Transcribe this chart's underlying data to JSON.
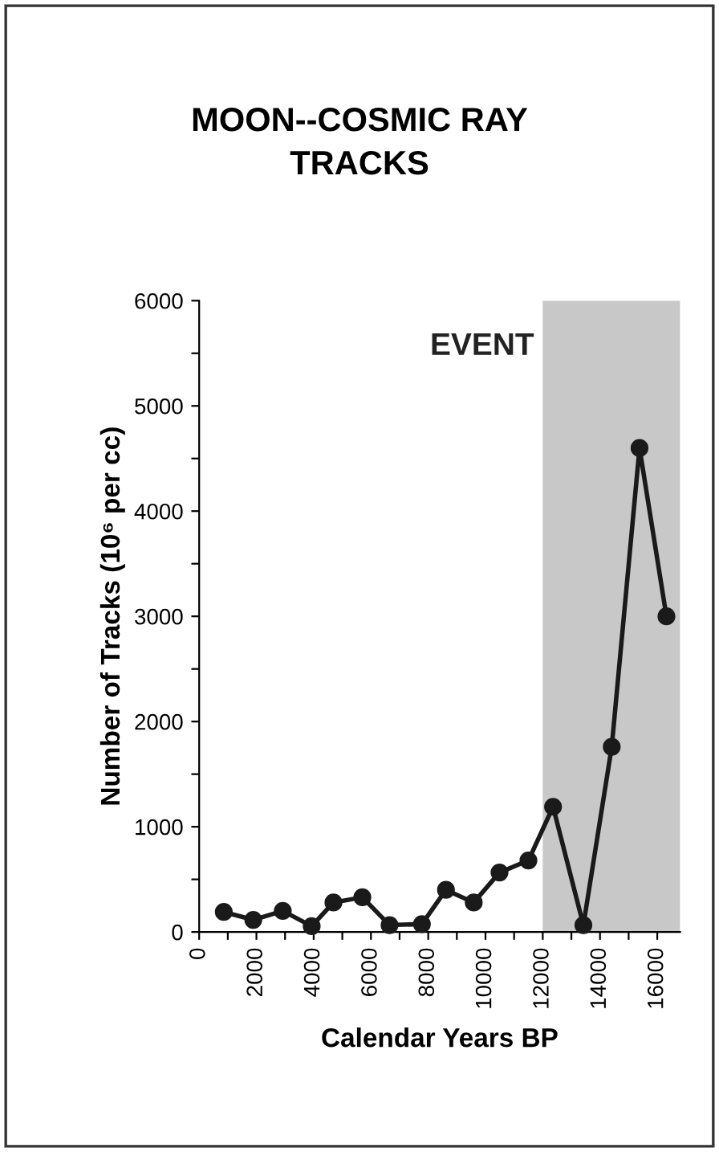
{
  "chart_data": {
    "type": "line",
    "title": "MOON--COSMIC RAY\nTRACKS",
    "xlabel": "Calendar Years BP",
    "ylabel": "Number of Tracks (10⁶ per cc)",
    "series": [
      {
        "color": "#1a1a1a",
        "x": [
          860,
          1890,
          2920,
          3930,
          4690,
          5700,
          6650,
          7780,
          8620,
          9590,
          10490,
          11500,
          12360,
          13420,
          14410,
          15380,
          16320
        ],
        "values": [
          190,
          115,
          200,
          55,
          280,
          330,
          65,
          75,
          400,
          280,
          565,
          680,
          1190,
          65,
          1760,
          4600,
          3000
        ]
      }
    ],
    "xlim": [
      0,
      16800
    ],
    "ylim": [
      0,
      6000
    ],
    "xticks": [
      0,
      {
        "value": 1000,
        "label": null
      },
      2000,
      {
        "value": 3000,
        "label": null
      },
      4000,
      {
        "value": 5000,
        "label": null
      },
      6000,
      {
        "value": 7000,
        "label": null
      },
      8000,
      {
        "value": 9000,
        "label": null
      },
      10000,
      {
        "value": 11000,
        "label": null
      },
      12000,
      {
        "value": 13000,
        "label": null
      },
      14000,
      {
        "value": 15000,
        "label": null
      },
      16000
    ],
    "yticks": [
      0,
      {
        "value": 500,
        "label": null
      },
      1000,
      {
        "value": 1500,
        "label": null
      },
      2000,
      {
        "value": 2500,
        "label": null
      },
      3000,
      {
        "value": 3500,
        "label": null
      },
      4000,
      {
        "value": 4500,
        "label": null
      },
      5000,
      {
        "value": 5500,
        "label": null
      },
      6000
    ],
    "bands": [
      {
        "axis": "x",
        "from": 12000,
        "to": 16800,
        "label": "EVENT",
        "color": "#c8c8c8"
      }
    ],
    "marker": "circle",
    "line_style": "solid",
    "grid": false,
    "legend": false
  }
}
